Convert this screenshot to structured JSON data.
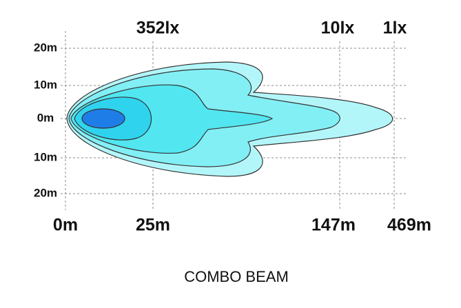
{
  "diagram": {
    "title": "COMBO BEAM",
    "lux_labels": [
      "352lx",
      "10lx",
      "1lx"
    ],
    "width_labels": [
      "20m",
      "10m",
      "0m",
      "10m",
      "20m"
    ],
    "distance_labels": [
      "0m",
      "25m",
      "147m",
      "469m"
    ]
  }
}
